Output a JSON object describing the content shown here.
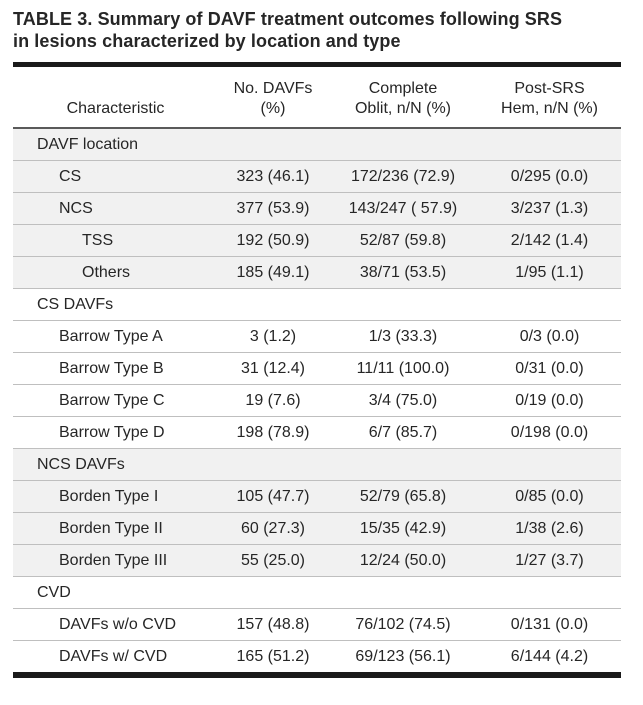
{
  "title_lines": [
    "TABLE 3. Summary of DAVF treatment outcomes following SRS",
    "in lesions characterized by location and type"
  ],
  "colors": {
    "rule_black": "#1a1a1a",
    "row_separator": "#bfbfbf",
    "header_rule": "#5a5a5a",
    "section_shade": "#f1f1f1",
    "text": "#262626"
  },
  "table": {
    "columns": [
      {
        "line1": "",
        "line2": "Characteristic"
      },
      {
        "line1": "No. DAVFs",
        "line2": "(%)"
      },
      {
        "line1": "Complete",
        "line2": "Oblit, n/N (%)"
      },
      {
        "line1": "Post-SRS",
        "line2": "Hem, n/N (%)"
      }
    ],
    "sections": [
      {
        "label": "DAVF location",
        "rows": [
          {
            "characteristic": "CS",
            "indent": 1,
            "no_davfs": "323 (46.1)",
            "complete_oblit": "172/236 (72.9)",
            "post_srs_hem": "0/295 (0.0)"
          },
          {
            "characteristic": "NCS",
            "indent": 1,
            "no_davfs": "377 (53.9)",
            "complete_oblit": "143/247 ( 57.9)",
            "post_srs_hem": "3/237 (1.3)"
          },
          {
            "characteristic": "TSS",
            "indent": 2,
            "no_davfs": "192 (50.9)",
            "complete_oblit": "52/87 (59.8)",
            "post_srs_hem": "2/142 (1.4)"
          },
          {
            "characteristic": "Others",
            "indent": 2,
            "no_davfs": "185 (49.1)",
            "complete_oblit": "38/71 (53.5)",
            "post_srs_hem": "1/95 (1.1)"
          }
        ]
      },
      {
        "label": "CS DAVFs",
        "rows": [
          {
            "characteristic": "Barrow Type A",
            "indent": 1,
            "no_davfs": "3 (1.2)",
            "complete_oblit": "1/3 (33.3)",
            "post_srs_hem": "0/3 (0.0)"
          },
          {
            "characteristic": "Barrow Type B",
            "indent": 1,
            "no_davfs": "31 (12.4)",
            "complete_oblit": "11/11 (100.0)",
            "post_srs_hem": "0/31 (0.0)"
          },
          {
            "characteristic": "Barrow Type C",
            "indent": 1,
            "no_davfs": "19 (7.6)",
            "complete_oblit": "3/4 (75.0)",
            "post_srs_hem": "0/19 (0.0)"
          },
          {
            "characteristic": "Barrow Type D",
            "indent": 1,
            "no_davfs": "198 (78.9)",
            "complete_oblit": "6/7 (85.7)",
            "post_srs_hem": "0/198 (0.0)"
          }
        ]
      },
      {
        "label": "NCS DAVFs",
        "rows": [
          {
            "characteristic": "Borden Type I",
            "indent": 1,
            "no_davfs": "105 (47.7)",
            "complete_oblit": "52/79 (65.8)",
            "post_srs_hem": "0/85 (0.0)"
          },
          {
            "characteristic": "Borden Type II",
            "indent": 1,
            "no_davfs": "60 (27.3)",
            "complete_oblit": "15/35 (42.9)",
            "post_srs_hem": "1/38 (2.6)"
          },
          {
            "characteristic": "Borden Type III",
            "indent": 1,
            "no_davfs": "55 (25.0)",
            "complete_oblit": "12/24 (50.0)",
            "post_srs_hem": "1/27 (3.7)"
          }
        ]
      },
      {
        "label": "CVD",
        "rows": [
          {
            "characteristic": "DAVFs w/o CVD",
            "indent": 1,
            "no_davfs": "157 (48.8)",
            "complete_oblit": "76/102 (74.5)",
            "post_srs_hem": "0/131 (0.0)"
          },
          {
            "characteristic": "DAVFs w/ CVD",
            "indent": 1,
            "no_davfs": "165 (51.2)",
            "complete_oblit": "69/123 (56.1)",
            "post_srs_hem": "6/144 (4.2)"
          }
        ]
      }
    ]
  }
}
